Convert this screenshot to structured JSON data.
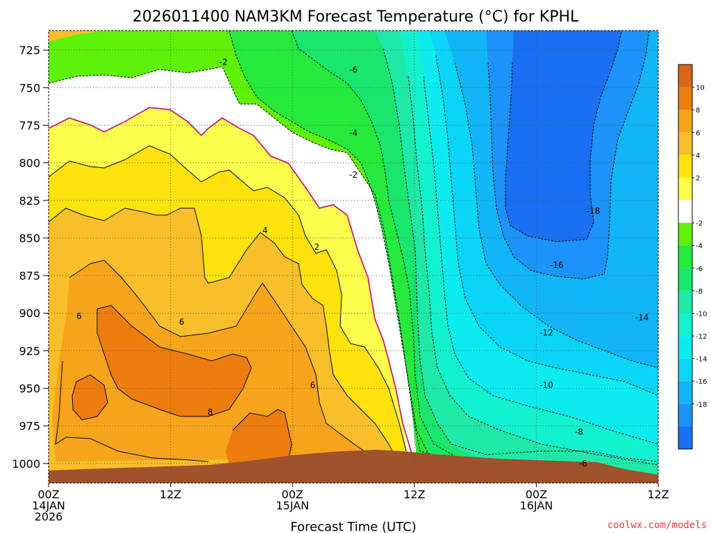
{
  "chart_data": {
    "type": "contour",
    "title": "2026011400 NAM3KM Forecast Temperature (°C) for KPHL",
    "xlabel": "Forecast Time (UTC)",
    "ylabel": "",
    "x_range_hours": [
      0,
      60
    ],
    "y_range_hPa": [
      712,
      1013
    ],
    "y_ticks": [
      725,
      750,
      775,
      800,
      825,
      850,
      875,
      900,
      925,
      950,
      975,
      1000
    ],
    "x_ticks": [
      {
        "hour": 0,
        "line1": "00Z",
        "line2": "14JAN",
        "line3": "2026"
      },
      {
        "hour": 12,
        "line1": "12Z",
        "line2": "",
        "line3": ""
      },
      {
        "hour": 24,
        "line1": "00Z",
        "line2": "15JAN",
        "line3": ""
      },
      {
        "hour": 36,
        "line1": "12Z",
        "line2": "",
        "line3": ""
      },
      {
        "hour": 48,
        "line1": "00Z",
        "line2": "16JAN",
        "line3": ""
      },
      {
        "hour": 60,
        "line1": "12Z",
        "line2": "",
        "line3": ""
      }
    ],
    "colorbar": {
      "levels": [
        {
          "label": "10",
          "color": "#ee7d10"
        },
        {
          "label": "8",
          "color": "#f6a51a"
        },
        {
          "label": "6",
          "color": "#f8bf2a"
        },
        {
          "label": "4",
          "color": "#fde20b"
        },
        {
          "label": "2",
          "color": "#fdfd4c"
        },
        {
          "label": "",
          "color": "#ffffff"
        },
        {
          "label": "-2",
          "color": "#5ef10a"
        },
        {
          "label": "-4",
          "color": "#26e93d"
        },
        {
          "label": "-6",
          "color": "#1ae56d"
        },
        {
          "label": "-8",
          "color": "#1fe9a8"
        },
        {
          "label": "-10",
          "color": "#13f2cf"
        },
        {
          "label": "-12",
          "color": "#0cecf0"
        },
        {
          "label": "-14",
          "color": "#0ad5f6"
        },
        {
          "label": "-16",
          "color": "#12b6f6"
        },
        {
          "label": "-18",
          "color": "#1b93f8"
        },
        {
          "label": "",
          "color": "#1a6ff2"
        }
      ],
      "top_color": "#d6681a"
    },
    "contour_labels": [
      {
        "text": "-2",
        "hour": 17.2,
        "p": 733
      },
      {
        "text": "-6",
        "hour": 30.0,
        "p": 738
      },
      {
        "text": "-4",
        "hour": 30.0,
        "p": 780
      },
      {
        "text": "-2",
        "hour": 30.0,
        "p": 808
      },
      {
        "text": "4",
        "hour": 21.3,
        "p": 845
      },
      {
        "text": "2",
        "hour": 26.4,
        "p": 856
      },
      {
        "text": "6",
        "hour": 3.0,
        "p": 902
      },
      {
        "text": "6",
        "hour": 13.1,
        "p": 906
      },
      {
        "text": "6",
        "hour": 26.0,
        "p": 948
      },
      {
        "text": "8",
        "hour": 15.9,
        "p": 966
      },
      {
        "text": "-18",
        "hour": 53.6,
        "p": 832
      },
      {
        "text": "-16",
        "hour": 50.0,
        "p": 868
      },
      {
        "text": "-14",
        "hour": 58.4,
        "p": 903
      },
      {
        "text": "-12",
        "hour": 49.0,
        "p": 913
      },
      {
        "text": "-10",
        "hour": 49.0,
        "p": 948
      },
      {
        "text": "-8",
        "hour": 52.2,
        "p": 979
      },
      {
        "text": "-6",
        "hour": 52.6,
        "p": 1000
      }
    ]
  },
  "credit": "coolwx.com/models"
}
